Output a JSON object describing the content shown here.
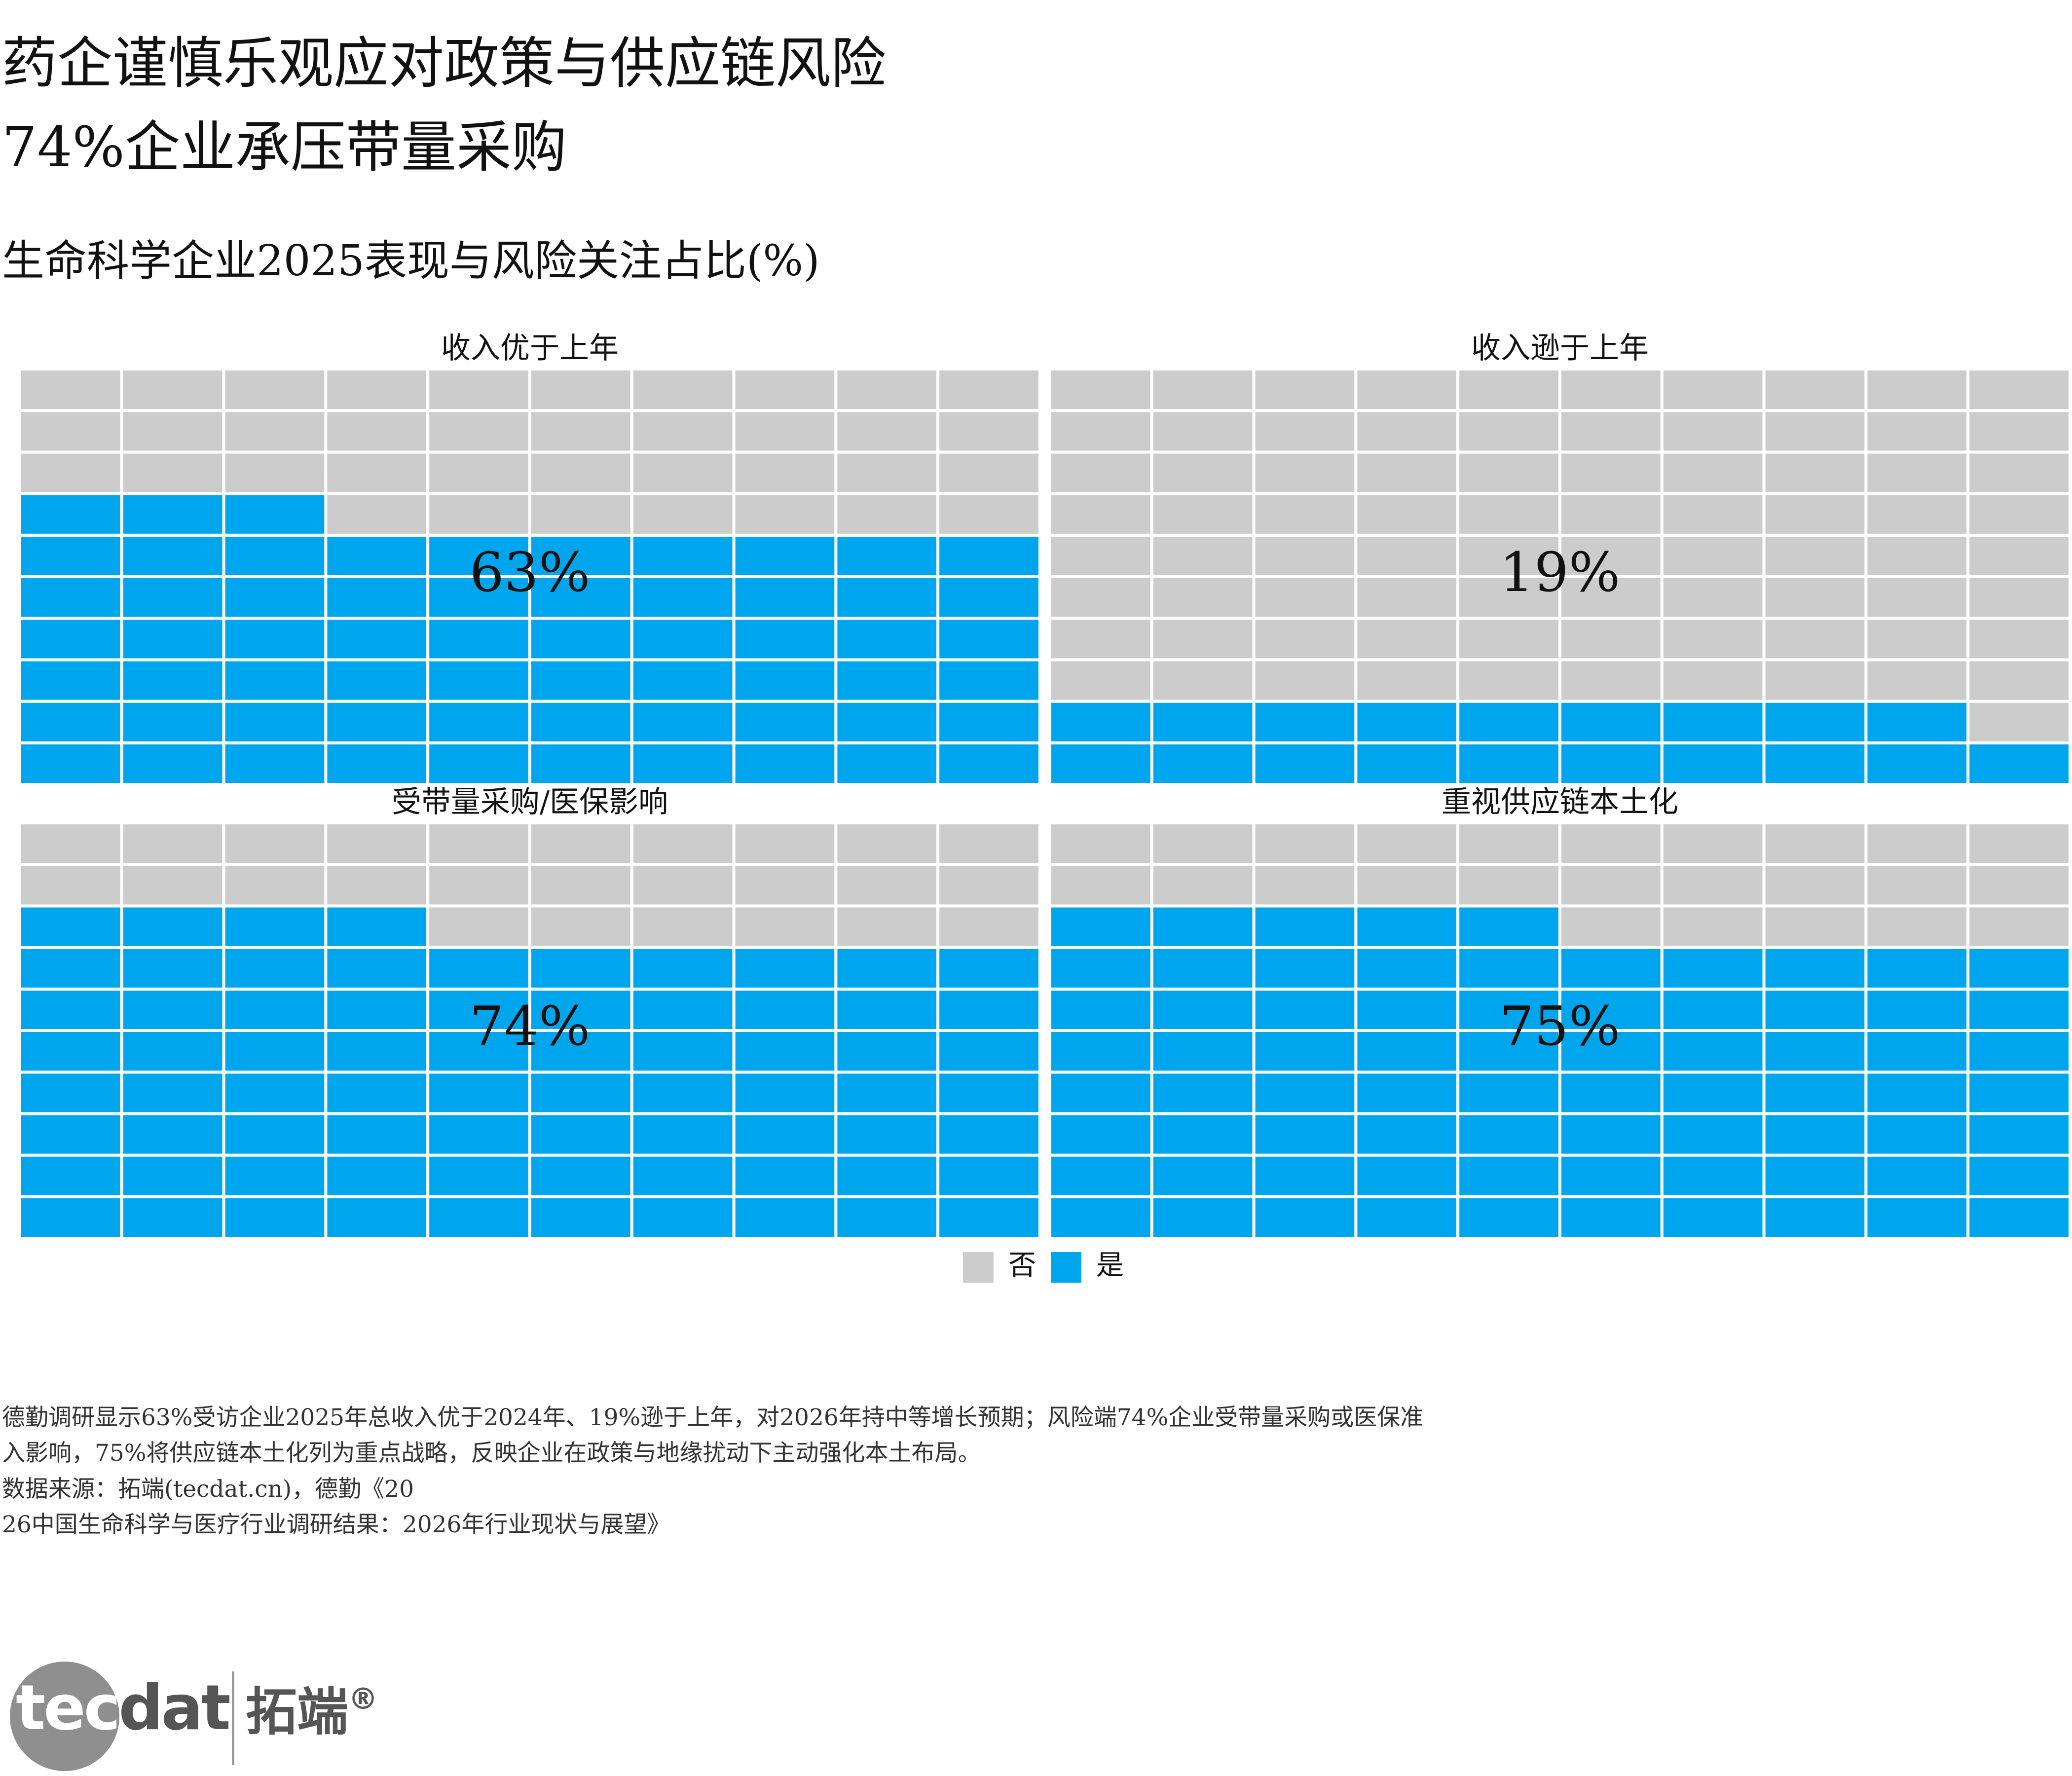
{
  "title_line1": "药企谨慎乐观应对政策与供应链风险",
  "title_line2": "74%企业承压带量采购",
  "subtitle": "生命科学企业2025表现与风险关注占比(%)",
  "colors": {
    "yes": "#00a6ed",
    "no": "#cccccc",
    "grid": "#ffffff"
  },
  "legend": {
    "no_label": "否",
    "yes_label": "是"
  },
  "chart_data": {
    "type": "waffle",
    "title": "生命科学企业2025表现与风险关注占比(%)",
    "units_per_panel": 100,
    "grid": {
      "rows": 10,
      "cols": 10
    },
    "legend_placement": "bottom-center",
    "categories": [
      "否",
      "是"
    ],
    "panels": [
      {
        "name": "收入优于上年",
        "value": 63,
        "label": "63%"
      },
      {
        "name": "收入逊于上年",
        "value": 19,
        "label": "19%"
      },
      {
        "name": "受带量采购/医保影响",
        "value": 74,
        "label": "74%"
      },
      {
        "name": "重视供应链本土化",
        "value": 75,
        "label": "75%"
      }
    ]
  },
  "notes": {
    "line1": "德勤调研显示63%受访企业2025年总收入优于2024年、19%逊于上年，对2026年持中等增长预期；风险端74%企业受带量采购或医保准",
    "line2": "入影响，75%将供应链本土化列为重点战略，反映企业在政策与地缘扰动下主动强化本土布局。",
    "source1": "数据来源：拓端(tecdat.cn)，德勤《20",
    "source2": "26中国生命科学与医疗行业调研结果：2026年行业现状与展望》"
  },
  "logo": {
    "text_tec": "tec",
    "text_dat": "dat",
    "text_cn": "拓端",
    "reg": "®"
  }
}
